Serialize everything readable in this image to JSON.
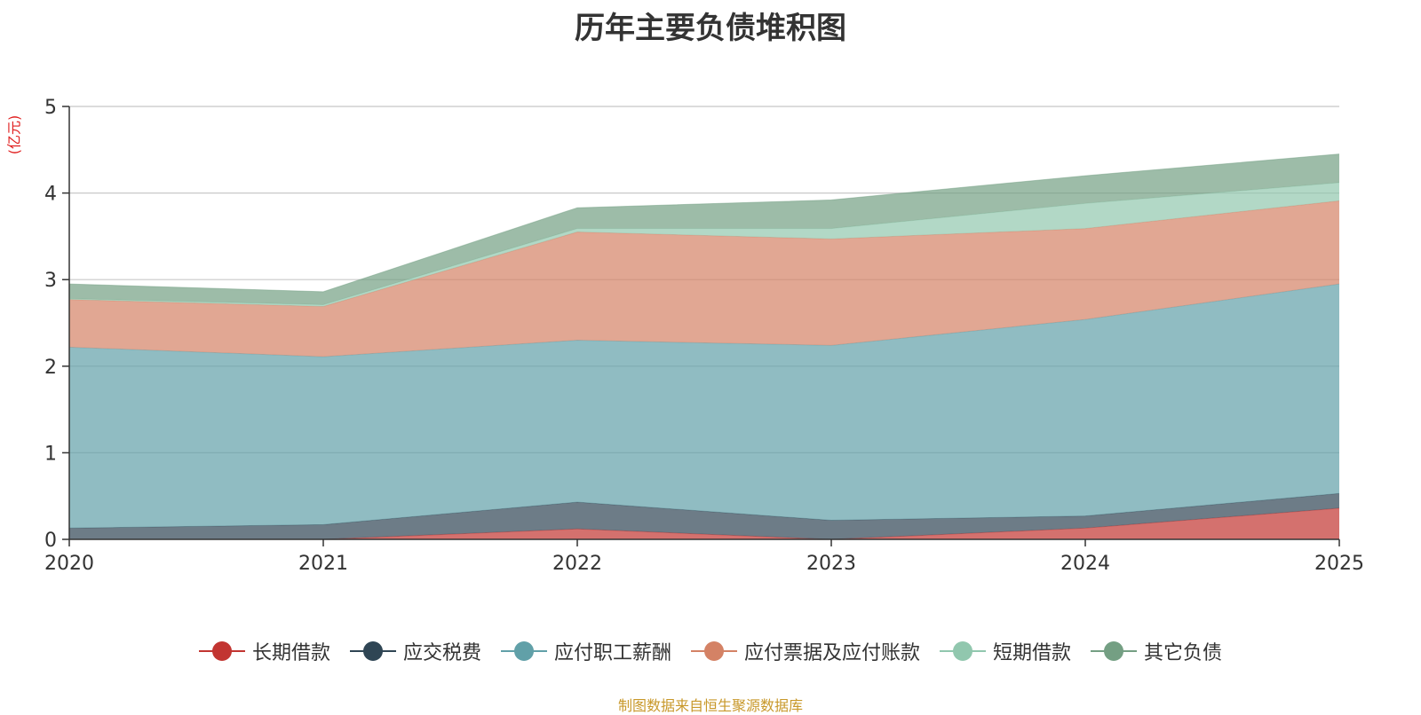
{
  "chart_data": {
    "type": "area",
    "stacked": true,
    "title": "历年主要负债堆积图",
    "ylabel": "(亿元)",
    "xlabel": "",
    "x": [
      "2020",
      "2021",
      "2022",
      "2023",
      "2024",
      "2025"
    ],
    "ylim": [
      0,
      5
    ],
    "yticks": [
      "0",
      "1",
      "2",
      "3",
      "4",
      "5"
    ],
    "grid": true,
    "legend_position": "bottom",
    "series": [
      {
        "name": "长期借款",
        "color": "#c23531",
        "values": [
          0.0,
          0.0,
          0.12,
          0.0,
          0.13,
          0.36
        ]
      },
      {
        "name": "应交税费",
        "color": "#2f4554",
        "values": [
          0.13,
          0.17,
          0.31,
          0.22,
          0.14,
          0.17
        ]
      },
      {
        "name": "应付职工薪酬",
        "color": "#61a0a8",
        "values": [
          2.09,
          1.94,
          1.87,
          2.02,
          2.27,
          2.42
        ]
      },
      {
        "name": "应付票据及应付账款",
        "color": "#d48265",
        "values": [
          0.55,
          0.58,
          1.25,
          1.23,
          1.05,
          0.96
        ]
      },
      {
        "name": "短期借款",
        "color": "#91c7ae",
        "values": [
          0.01,
          0.02,
          0.04,
          0.12,
          0.29,
          0.21
        ]
      },
      {
        "name": "其它负债",
        "color": "#749f83",
        "values": [
          0.17,
          0.15,
          0.24,
          0.33,
          0.32,
          0.33
        ]
      }
    ]
  },
  "footer": {
    "text": "制图数据来自恒生聚源数据库",
    "color": "#c8982a"
  }
}
